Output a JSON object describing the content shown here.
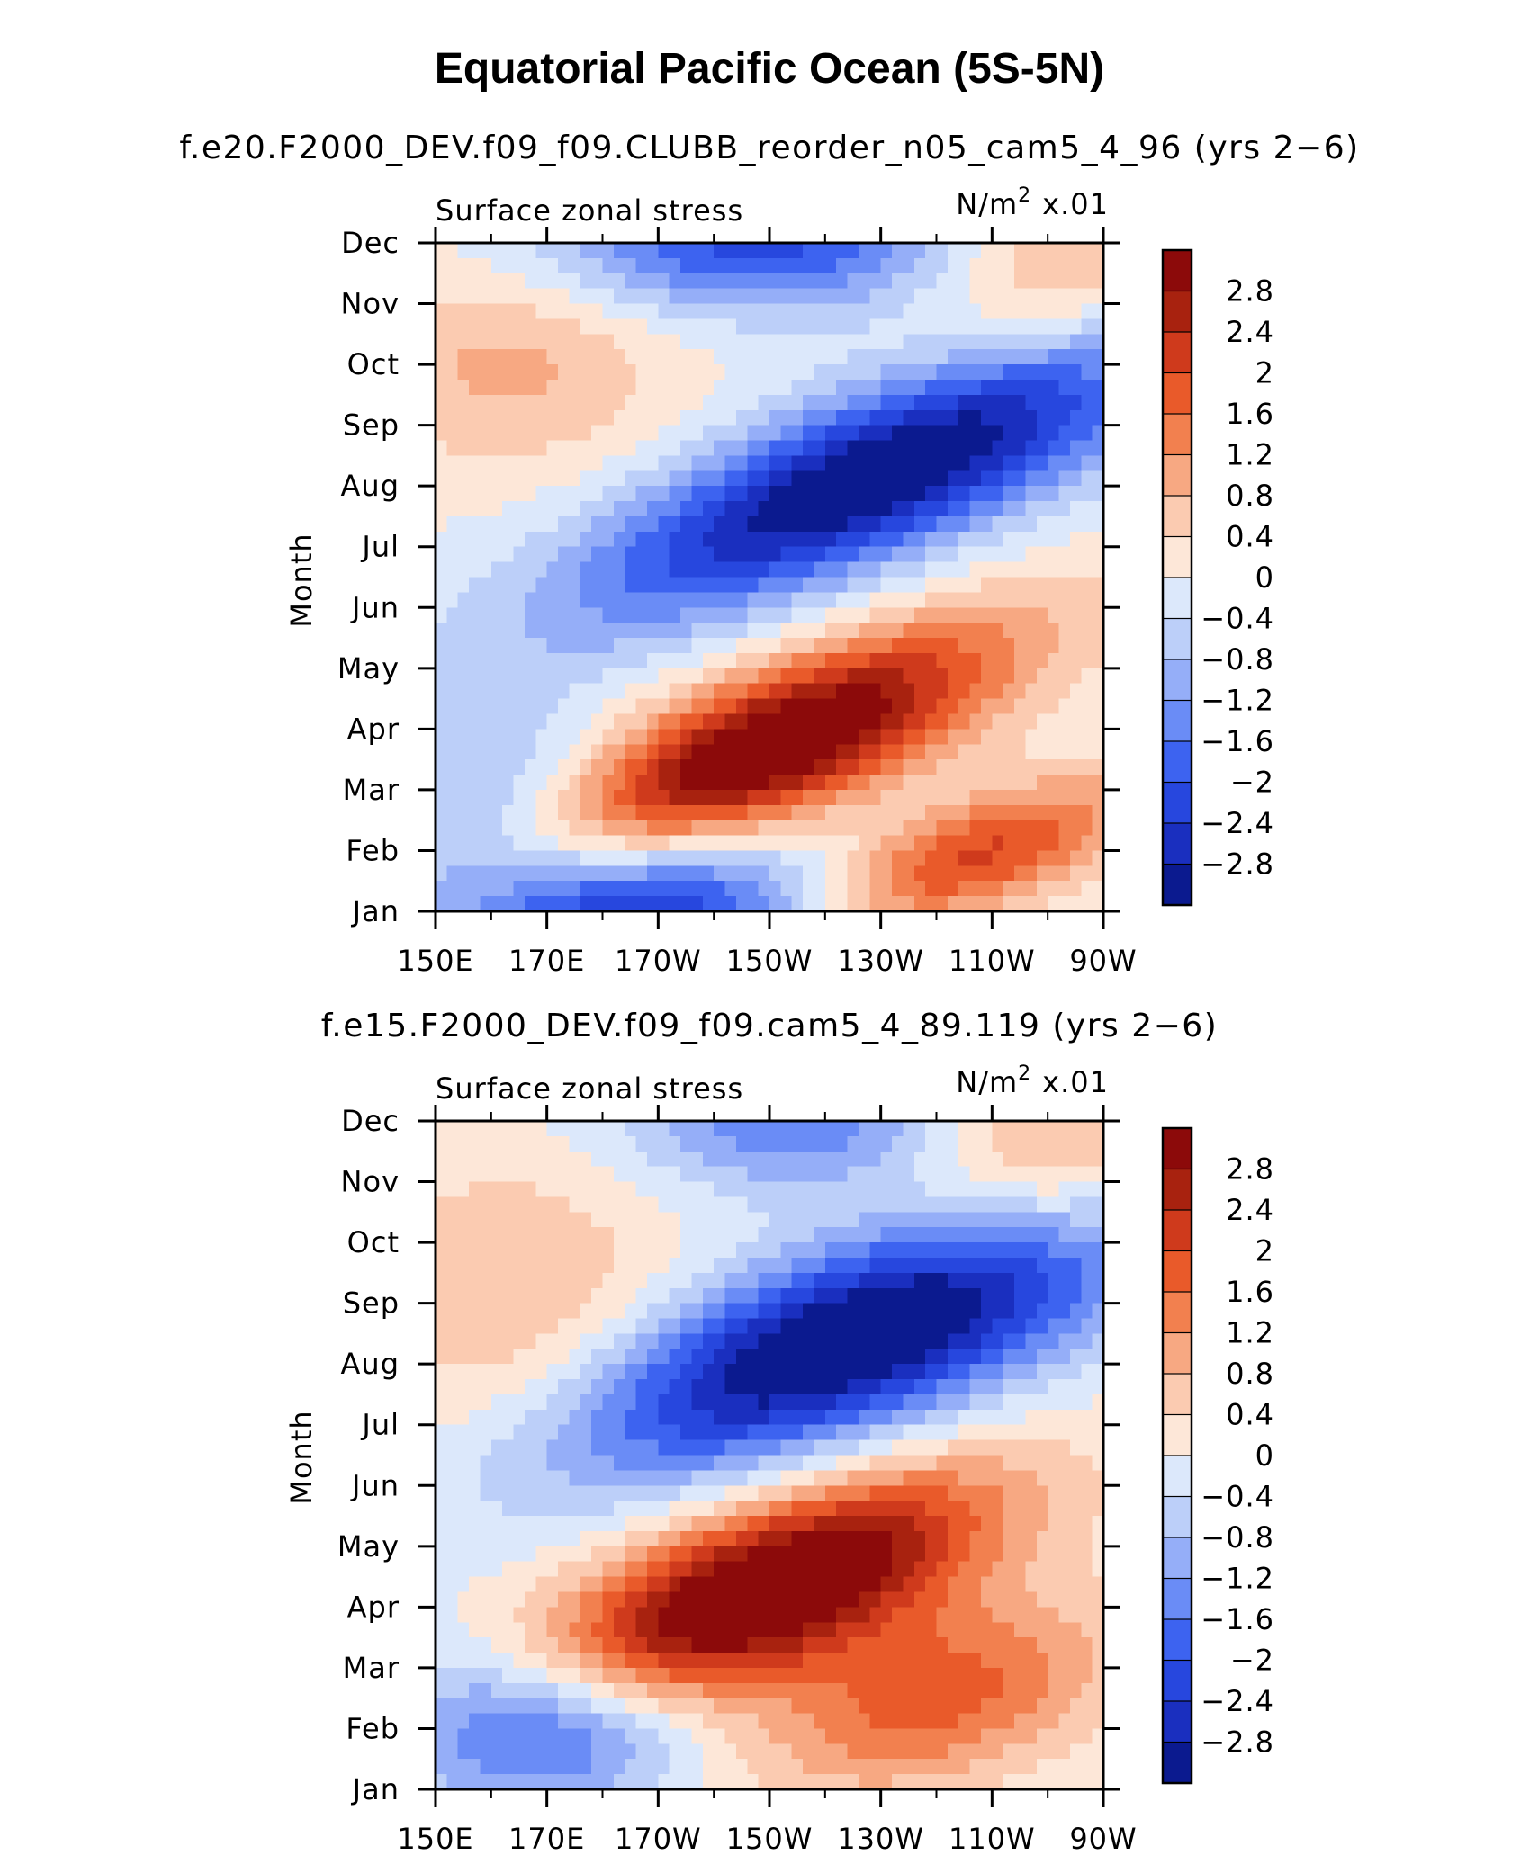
{
  "title": "Equatorial Pacific Ocean (5S-5N)",
  "chart_data": [
    {
      "type": "heatmap",
      "subtitle": "f.e20.F2000_DEV.f09_f09.CLUBB_reorder_n05_cam5_4_96 (yrs 2−6)",
      "left_label": "Surface zonal stress",
      "right_label_base": "N/m",
      "right_label_sup": "2",
      "right_label_scale": "x.01",
      "ylabel": "Month",
      "x_ticks": [
        "150E",
        "170E",
        "170W",
        "150W",
        "130W",
        "110W",
        "90W"
      ],
      "y_ticks": [
        "Jan",
        "Feb",
        "Mar",
        "Apr",
        "May",
        "Jun",
        "Jul",
        "Aug",
        "Sep",
        "Oct",
        "Nov",
        "Dec"
      ],
      "x_lon": [
        150,
        170,
        190,
        210,
        230,
        250,
        270
      ],
      "xlim": [
        150,
        270
      ],
      "ylim": [
        1,
        12
      ],
      "colorbar_labels": [
        "2.8",
        "2.4",
        "2",
        "1.6",
        "1.2",
        "0.8",
        "0.4",
        "0",
        "−0.4",
        "−0.8",
        "−1.2",
        "−1.6",
        "−2",
        "−2.4",
        "−2.8"
      ],
      "features": [
        {
          "lon": 210,
          "month": 3.7,
          "amp": 3.6,
          "slon": 30,
          "smon": 0.9,
          "tilt": 0.035
        },
        {
          "lon": 245,
          "month": 1.8,
          "amp": 2.2,
          "slon": 22,
          "smon": 0.7,
          "tilt": 0.03
        },
        {
          "lon": 230,
          "month": 8.2,
          "amp": -3.4,
          "slon": 38,
          "smon": 1.0,
          "tilt": 0.035
        },
        {
          "lon": 208,
          "month": 12.0,
          "amp": -2.2,
          "slon": 26,
          "smon": 0.8,
          "tilt": 0
        },
        {
          "lon": 185,
          "month": 1.0,
          "amp": -2.6,
          "slon": 28,
          "smon": 0.9,
          "tilt": 0
        },
        {
          "lon": 163,
          "month": 10.0,
          "amp": 0.9,
          "slon": 20,
          "smon": 1.2,
          "tilt": 0
        },
        {
          "lon": 262,
          "month": 11.5,
          "amp": 1.0,
          "slon": 18,
          "smon": 1.2,
          "tilt": 0
        },
        {
          "lon": 160,
          "month": 3.0,
          "amp": -0.9,
          "slon": 20,
          "smon": 1.0,
          "tilt": 0
        }
      ]
    },
    {
      "type": "heatmap",
      "subtitle": "f.e15.F2000_DEV.f09_f09.cam5_4_89.119 (yrs 2−6)",
      "left_label": "Surface zonal stress",
      "right_label_base": "N/m",
      "right_label_sup": "2",
      "right_label_scale": "x.01",
      "ylabel": "Month",
      "x_ticks": [
        "150E",
        "170E",
        "170W",
        "150W",
        "130W",
        "110W",
        "90W"
      ],
      "y_ticks": [
        "Jan",
        "Feb",
        "Mar",
        "Apr",
        "May",
        "Jun",
        "Jul",
        "Aug",
        "Sep",
        "Oct",
        "Nov",
        "Dec"
      ],
      "x_lon": [
        150,
        170,
        190,
        210,
        230,
        250,
        270
      ],
      "xlim": [
        150,
        270
      ],
      "ylim": [
        1,
        12
      ],
      "colorbar_labels": [
        "2.8",
        "2.4",
        "2",
        "1.6",
        "1.2",
        "0.8",
        "0.4",
        "0",
        "−0.4",
        "−0.8",
        "−1.2",
        "−1.6",
        "−2",
        "−2.4",
        "−2.8"
      ],
      "features": [
        {
          "lon": 210,
          "month": 4.3,
          "amp": 3.8,
          "slon": 28,
          "smon": 1.0,
          "tilt": 0.03
        },
        {
          "lon": 240,
          "month": 2.5,
          "amp": 1.8,
          "slon": 22,
          "smon": 1.0,
          "tilt": 0.02
        },
        {
          "lon": 225,
          "month": 8.4,
          "amp": -3.6,
          "slon": 36,
          "smon": 1.1,
          "tilt": 0.03
        },
        {
          "lon": 215,
          "month": 12.0,
          "amp": -1.6,
          "slon": 22,
          "smon": 0.8,
          "tilt": 0
        },
        {
          "lon": 168,
          "month": 2.0,
          "amp": -2.2,
          "slon": 18,
          "smon": 0.9,
          "tilt": 0
        },
        {
          "lon": 165,
          "month": 9.0,
          "amp": 0.8,
          "slon": 20,
          "smon": 1.8,
          "tilt": 0
        },
        {
          "lon": 260,
          "month": 11.5,
          "amp": 1.2,
          "slon": 18,
          "smon": 1.2,
          "tilt": 0
        }
      ]
    }
  ],
  "palette": [
    "#0b1a8f",
    "#1a2fbf",
    "#2747de",
    "#3d63f0",
    "#6a8cf6",
    "#95aef8",
    "#bccff9",
    "#dce8fb",
    "#fde7d8",
    "#fbcbb1",
    "#f7a882",
    "#f2804f",
    "#e95a2a",
    "#cf3a1c",
    "#a8220f",
    "#8c0a0a"
  ]
}
